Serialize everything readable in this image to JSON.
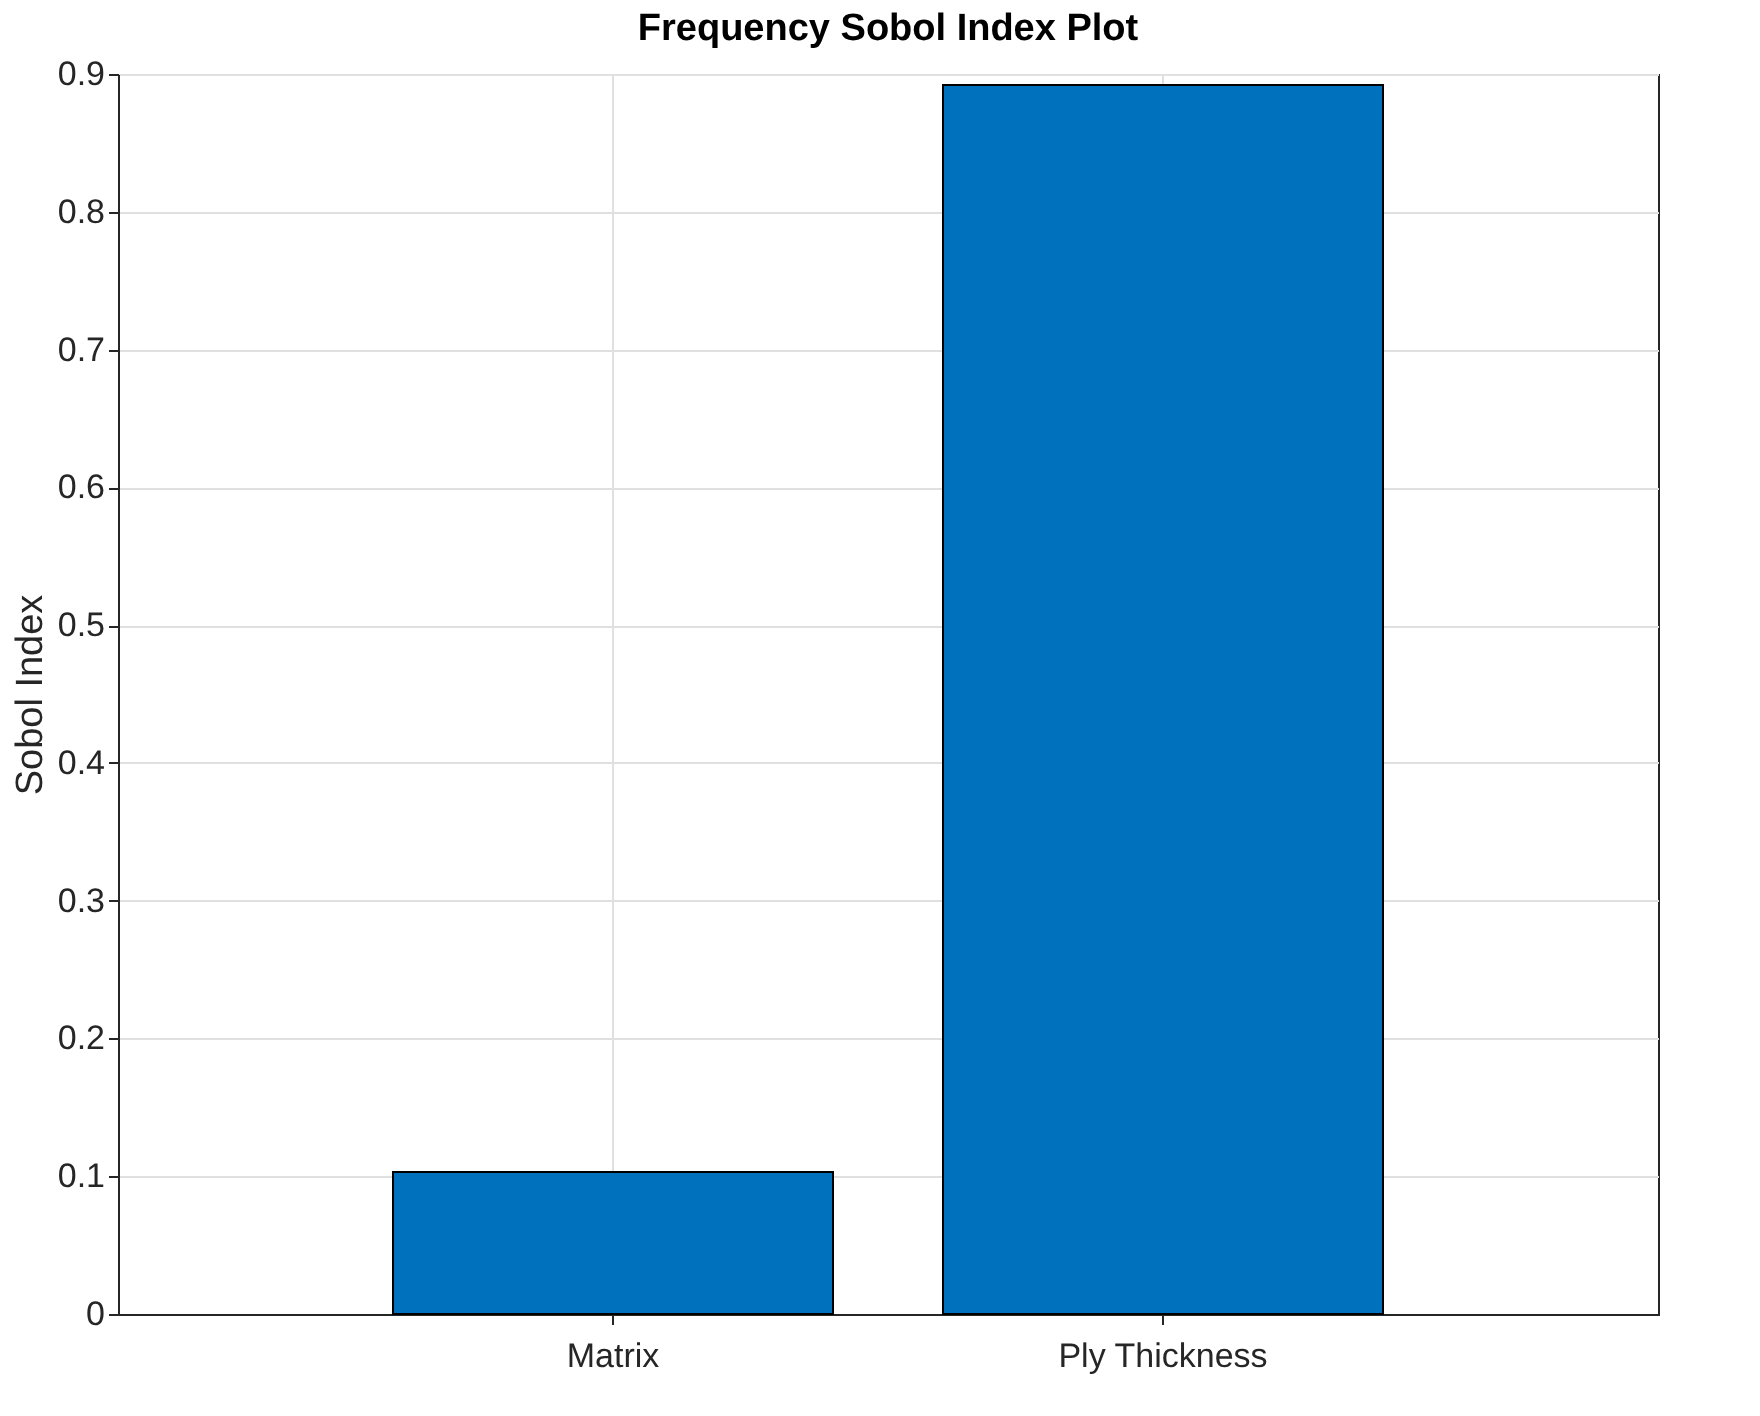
{
  "chart_data": {
    "type": "bar",
    "title": "Frequency Sobol Index Plot",
    "ylabel": "Sobol Index",
    "categories": [
      "Matrix",
      "Ply Thickness"
    ],
    "values": [
      0.103,
      0.892
    ],
    "color": "#0072bd",
    "ylim": [
      0,
      0.9
    ],
    "yticks": [
      0,
      0.1,
      0.2,
      0.3,
      0.4,
      0.5,
      0.6,
      0.7,
      0.8,
      0.9
    ],
    "grid": true
  }
}
